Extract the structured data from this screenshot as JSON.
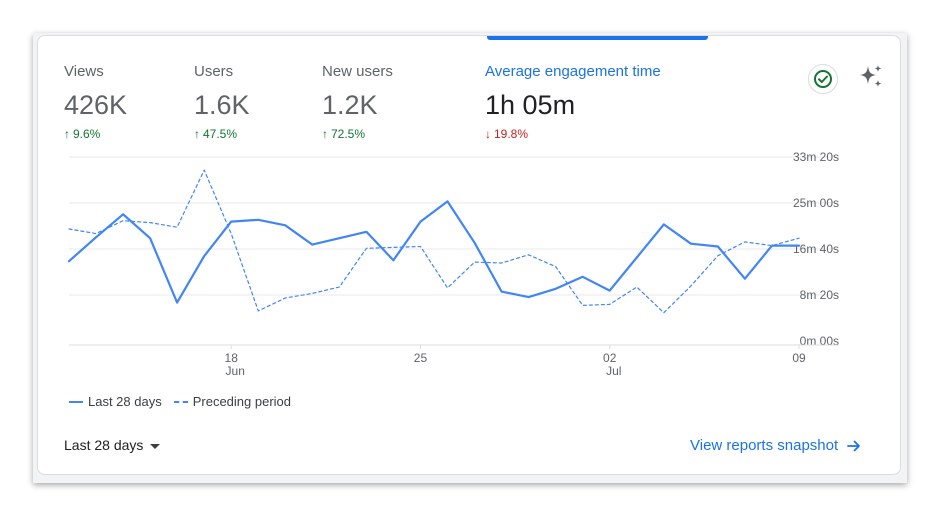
{
  "metrics": [
    {
      "label": "Views",
      "value": "426K",
      "delta": "9.6%",
      "direction": "up"
    },
    {
      "label": "Users",
      "value": "1.6K",
      "delta": "47.5%",
      "direction": "up"
    },
    {
      "label": "New users",
      "value": "1.2K",
      "delta": "72.5%",
      "direction": "up"
    },
    {
      "label": "Average engagement time",
      "value": "1h 05m",
      "delta": "19.8%",
      "direction": "down",
      "active": true
    }
  ],
  "icons": {
    "check": "check-circle-icon",
    "sparkle": "sparkle-icon"
  },
  "colors": {
    "accent": "#1a73e8",
    "line": "#4285f4",
    "up": "#137333",
    "down": "#c5221f"
  },
  "chart_data": {
    "type": "line",
    "y_ticks": [
      "33m 20s",
      "25m 00s",
      "16m 40s",
      "8m 20s",
      "0m 00s"
    ],
    "y_tick_seconds": [
      2000,
      1500,
      1000,
      500,
      0
    ],
    "x_tick_labels": [
      {
        "day": "18",
        "month": "Jun",
        "index": 6
      },
      {
        "day": "25",
        "month": "",
        "index": 13
      },
      {
        "day": "02",
        "month": "Jul",
        "index": 20
      },
      {
        "day": "09",
        "month": "",
        "index": 27
      }
    ],
    "grid": true,
    "legend_position": "bottom-left",
    "series": [
      {
        "name": "Last 28 days",
        "style": "solid",
        "values_seconds": [
          900,
          1160,
          1410,
          1150,
          450,
          955,
          1330,
          1350,
          1290,
          1080,
          1150,
          1220,
          910,
          1330,
          1550,
          1100,
          570,
          510,
          600,
          730,
          580,
          940,
          1300,
          1090,
          1060,
          710,
          1070,
          1070
        ]
      },
      {
        "name": "Preceding period",
        "style": "dashed",
        "values_seconds": [
          1250,
          1200,
          1340,
          1320,
          1270,
          1890,
          1200,
          360,
          500,
          550,
          620,
          1040,
          1050,
          1060,
          610,
          890,
          880,
          970,
          840,
          420,
          430,
          620,
          340,
          630,
          960,
          1110,
          1070,
          1150
        ]
      }
    ]
  },
  "legend": {
    "current": "Last 28 days",
    "previous": "Preceding period"
  },
  "footer": {
    "range_label": "Last 28 days",
    "link_label": "View reports snapshot"
  }
}
